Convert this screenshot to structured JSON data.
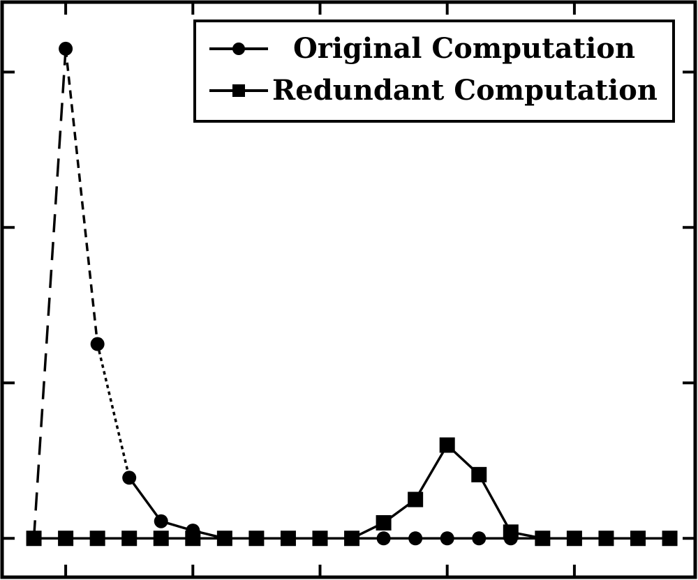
{
  "chart_data": {
    "type": "line",
    "title": "",
    "xlabel": "",
    "ylabel": "",
    "xlim": [
      -1.0,
      20.8
    ],
    "ylim": [
      -0.25,
      3.45
    ],
    "xticks": [
      1,
      5,
      9,
      13,
      17
    ],
    "yticks": [
      0,
      1,
      2,
      3
    ],
    "grid": false,
    "legend_position": "top-right",
    "series": [
      {
        "name": "Original Computation",
        "marker": "circle",
        "color": "#000000",
        "x": [
          0,
          1,
          2,
          3,
          4,
          5,
          6,
          7,
          8,
          9,
          10,
          11,
          12,
          13,
          14,
          15,
          16,
          17,
          18,
          19,
          20
        ],
        "y": [
          0,
          3.15,
          1.25,
          0.39,
          0.11,
          0.05,
          0,
          0,
          0,
          0,
          0,
          0,
          0,
          0,
          0,
          0,
          0,
          0,
          0,
          0,
          0
        ],
        "segment_styles": [
          "long-dash",
          "short-dash",
          "dotted",
          "solid",
          "solid",
          "solid",
          "solid",
          "solid",
          "solid",
          "solid",
          "solid",
          "solid",
          "solid",
          "solid",
          "solid",
          "solid",
          "solid",
          "solid",
          "solid",
          "solid"
        ]
      },
      {
        "name": "Redundant Computation",
        "marker": "square",
        "color": "#000000",
        "x": [
          0,
          1,
          2,
          3,
          4,
          5,
          6,
          7,
          8,
          9,
          10,
          11,
          12,
          13,
          14,
          15,
          16,
          17,
          18,
          19,
          20
        ],
        "y": [
          0,
          0,
          0,
          0,
          0,
          0,
          0,
          0,
          0,
          0,
          0,
          0.1,
          0.25,
          0.6,
          0.41,
          0.04,
          0,
          0,
          0,
          0,
          0
        ]
      }
    ]
  }
}
